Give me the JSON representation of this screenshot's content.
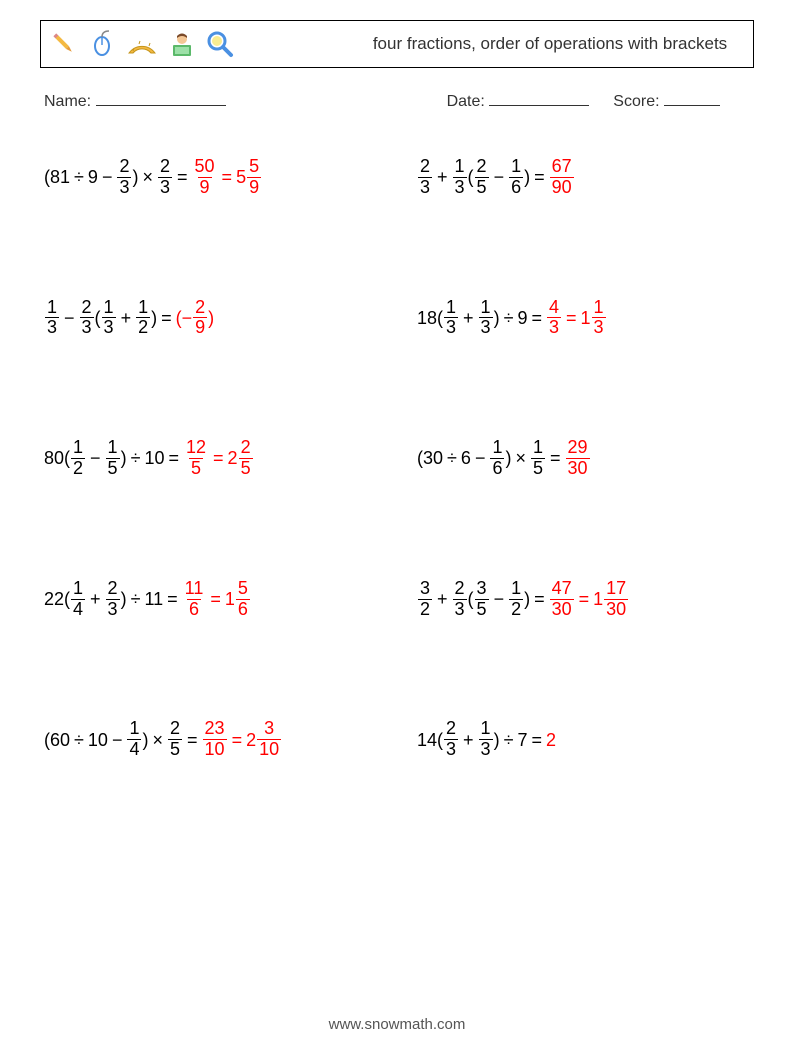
{
  "title": "four fractions, order of operations with brackets",
  "labels": {
    "name": "Name:",
    "date": "Date:",
    "score": "Score:"
  },
  "blank_widths": {
    "name": 130,
    "date": 100,
    "score": 56
  },
  "colors": {
    "text": "#000000",
    "answer": "#ff0000",
    "border": "#000000",
    "background": "#ffffff",
    "footer": "#555555"
  },
  "fonts": {
    "title_size": 17,
    "body_size": 16,
    "problem_size": 18,
    "footer_size": 15
  },
  "icons": [
    {
      "name": "pencil-icon",
      "fill": "#f4b942"
    },
    {
      "name": "mouse-icon",
      "fill": "#4a90e2"
    },
    {
      "name": "ruler-icon",
      "fill": "#f4b942"
    },
    {
      "name": "student-icon",
      "fill": "#4a90e2"
    },
    {
      "name": "magnifier-icon",
      "fill": "#4a90e2"
    }
  ],
  "footer": "www.snowmath.com",
  "problems": [
    {
      "expr": [
        {
          "t": "("
        },
        {
          "t": "81"
        },
        {
          "op": "÷"
        },
        {
          "t": "9"
        },
        {
          "op": "−"
        },
        {
          "f": [
            2,
            3
          ]
        },
        {
          "t": ")"
        },
        {
          "op": "×"
        },
        {
          "f": [
            2,
            3
          ]
        }
      ],
      "ans": [
        {
          "f": [
            50,
            9
          ]
        },
        {
          "eq": "="
        },
        {
          "m": [
            5,
            5,
            9
          ]
        }
      ]
    },
    {
      "expr": [
        {
          "f": [
            2,
            3
          ]
        },
        {
          "op": "+"
        },
        {
          "f": [
            1,
            3
          ]
        },
        {
          "t": "("
        },
        {
          "f": [
            2,
            5
          ]
        },
        {
          "op": "−"
        },
        {
          "f": [
            1,
            6
          ]
        },
        {
          "t": ")"
        }
      ],
      "ans": [
        {
          "f": [
            67,
            90
          ]
        }
      ]
    },
    {
      "expr": [
        {
          "f": [
            1,
            3
          ]
        },
        {
          "op": "−"
        },
        {
          "f": [
            2,
            3
          ]
        },
        {
          "t": "("
        },
        {
          "f": [
            1,
            3
          ]
        },
        {
          "op": "+"
        },
        {
          "f": [
            1,
            2
          ]
        },
        {
          "t": ")"
        }
      ],
      "ans": [
        {
          "t": "(−"
        },
        {
          "f": [
            2,
            9
          ]
        },
        {
          "t": ")"
        }
      ]
    },
    {
      "expr": [
        {
          "t": "18("
        },
        {
          "f": [
            1,
            3
          ]
        },
        {
          "op": "+"
        },
        {
          "f": [
            1,
            3
          ]
        },
        {
          "t": ")"
        },
        {
          "op": "÷"
        },
        {
          "t": "9"
        }
      ],
      "ans": [
        {
          "f": [
            4,
            3
          ]
        },
        {
          "eq": "="
        },
        {
          "m": [
            1,
            1,
            3
          ]
        }
      ]
    },
    {
      "expr": [
        {
          "t": "80("
        },
        {
          "f": [
            1,
            2
          ]
        },
        {
          "op": "−"
        },
        {
          "f": [
            1,
            5
          ]
        },
        {
          "t": ")"
        },
        {
          "op": "÷"
        },
        {
          "t": "10"
        }
      ],
      "ans": [
        {
          "f": [
            12,
            5
          ]
        },
        {
          "eq": "="
        },
        {
          "m": [
            2,
            2,
            5
          ]
        }
      ]
    },
    {
      "expr": [
        {
          "t": "("
        },
        {
          "t": "30"
        },
        {
          "op": "÷"
        },
        {
          "t": "6"
        },
        {
          "op": "−"
        },
        {
          "f": [
            1,
            6
          ]
        },
        {
          "t": ")"
        },
        {
          "op": "×"
        },
        {
          "f": [
            1,
            5
          ]
        }
      ],
      "ans": [
        {
          "f": [
            29,
            30
          ]
        }
      ]
    },
    {
      "expr": [
        {
          "t": "22("
        },
        {
          "f": [
            1,
            4
          ]
        },
        {
          "op": "+"
        },
        {
          "f": [
            2,
            3
          ]
        },
        {
          "t": ")"
        },
        {
          "op": "÷"
        },
        {
          "t": "11"
        }
      ],
      "ans": [
        {
          "f": [
            11,
            6
          ]
        },
        {
          "eq": "="
        },
        {
          "m": [
            1,
            5,
            6
          ]
        }
      ]
    },
    {
      "expr": [
        {
          "f": [
            3,
            2
          ]
        },
        {
          "op": "+"
        },
        {
          "f": [
            2,
            3
          ]
        },
        {
          "t": "("
        },
        {
          "f": [
            3,
            5
          ]
        },
        {
          "op": "−"
        },
        {
          "f": [
            1,
            2
          ]
        },
        {
          "t": ")"
        }
      ],
      "ans": [
        {
          "f": [
            47,
            30
          ]
        },
        {
          "eq": "="
        },
        {
          "m": [
            1,
            17,
            30
          ]
        }
      ]
    },
    {
      "expr": [
        {
          "t": "("
        },
        {
          "t": "60"
        },
        {
          "op": "÷"
        },
        {
          "t": "10"
        },
        {
          "op": "−"
        },
        {
          "f": [
            1,
            4
          ]
        },
        {
          "t": ")"
        },
        {
          "op": "×"
        },
        {
          "f": [
            2,
            5
          ]
        }
      ],
      "ans": [
        {
          "f": [
            23,
            10
          ]
        },
        {
          "eq": "="
        },
        {
          "m": [
            2,
            3,
            10
          ]
        }
      ]
    },
    {
      "expr": [
        {
          "t": "14("
        },
        {
          "f": [
            2,
            3
          ]
        },
        {
          "op": "+"
        },
        {
          "f": [
            1,
            3
          ]
        },
        {
          "t": ")"
        },
        {
          "op": "÷"
        },
        {
          "t": "7"
        }
      ],
      "ans": [
        {
          "t": "2"
        }
      ]
    }
  ]
}
